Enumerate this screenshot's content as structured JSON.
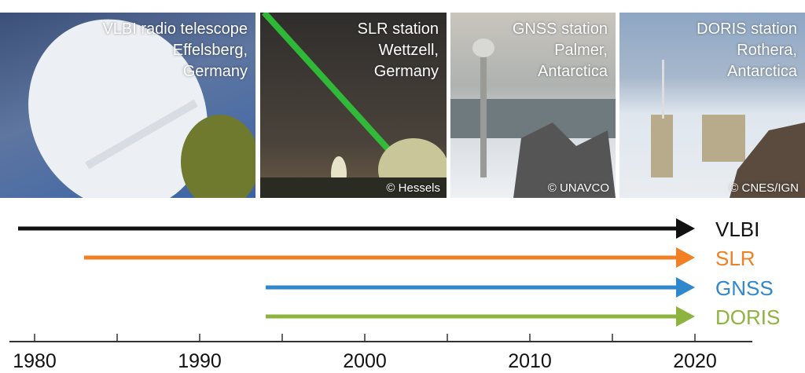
{
  "photos": [
    {
      "caption": [
        "VLBI radio telescope",
        "Effelsberg,",
        "Germany"
      ],
      "credit": ""
    },
    {
      "caption": [
        "SLR station",
        "Wettzell,",
        "Germany"
      ],
      "credit": "© Hessels"
    },
    {
      "caption": [
        "GNSS station",
        "Palmer,",
        "Antarctica"
      ],
      "credit": "© UNAVCO"
    },
    {
      "caption": [
        "DORIS station",
        "Rothera,",
        "Antarctica"
      ],
      "credit": "© CNES/IGN"
    }
  ],
  "timeline": {
    "axis_ticks": [
      "1980",
      "1990",
      "2000",
      "2010",
      "2020"
    ],
    "minor_tick_step_years": 5,
    "techniques": [
      {
        "name": "VLBI",
        "start": 1979,
        "end": 2020,
        "color": "#111111"
      },
      {
        "name": "SLR",
        "start": 1983,
        "end": 2020,
        "color": "#f08023"
      },
      {
        "name": "GNSS",
        "start": 1994,
        "end": 2020,
        "color": "#2f87cc"
      },
      {
        "name": "DORIS",
        "start": 1994,
        "end": 2020,
        "color": "#8db43e"
      }
    ]
  }
}
